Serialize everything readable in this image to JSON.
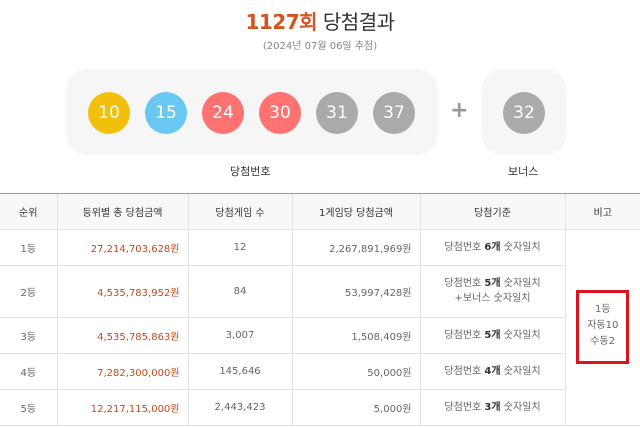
{
  "header": {
    "round": "1127회",
    "title_suffix": "당첨결과",
    "draw_date": "(2024년 07월 06일 추첨)"
  },
  "winning_numbers": {
    "balls": [
      {
        "number": "10",
        "color": "#f2c00c"
      },
      {
        "number": "15",
        "color": "#69c8f2"
      },
      {
        "number": "24",
        "color": "#ff7272"
      },
      {
        "number": "30",
        "color": "#ff7272"
      },
      {
        "number": "31",
        "color": "#aaaaaa"
      },
      {
        "number": "37",
        "color": "#aaaaaa"
      }
    ],
    "plus": "+",
    "label": "당첨번호",
    "bonus": {
      "number": "32",
      "color": "#aaaaaa",
      "label": "보너스"
    }
  },
  "table": {
    "headers": [
      "순위",
      "등위별 총 당첨금액",
      "당첨게임 수",
      "1게임당 당첨금액",
      "당첨기준",
      "비고"
    ],
    "rows": [
      {
        "rank": "1등",
        "total": "27,214,703,628원",
        "games": "12",
        "per_game": "2,267,891,969원",
        "criteria_pre": "당첨번호 ",
        "criteria_bold": "6개",
        "criteria_post": " 숫자일치",
        "criteria_line2": ""
      },
      {
        "rank": "2등",
        "total": "4,535,783,952원",
        "games": "84",
        "per_game": "53,997,428원",
        "criteria_pre": "당첨번호 ",
        "criteria_bold": "5개",
        "criteria_post": " 숫자일치",
        "criteria_line2": "+보너스 숫자일치"
      },
      {
        "rank": "3등",
        "total": "4,535,785,863원",
        "games": "3,007",
        "per_game": "1,508,409원",
        "criteria_pre": "당첨번호 ",
        "criteria_bold": "5개",
        "criteria_post": " 숫자일치",
        "criteria_line2": ""
      },
      {
        "rank": "4등",
        "total": "7,282,300,000원",
        "games": "145,646",
        "per_game": "50,000원",
        "criteria_pre": "당첨번호 ",
        "criteria_bold": "4개",
        "criteria_post": " 숫자일치",
        "criteria_line2": ""
      },
      {
        "rank": "5등",
        "total": "12,217,115,000원",
        "games": "2,443,423",
        "per_game": "5,000원",
        "criteria_pre": "당첨번호 ",
        "criteria_bold": "3개",
        "criteria_post": " 숫자일치",
        "criteria_line2": ""
      }
    ],
    "note": {
      "line1": "1등",
      "line2": "자동10",
      "line3": "수동2",
      "highlight_color": "#d9141e"
    }
  }
}
